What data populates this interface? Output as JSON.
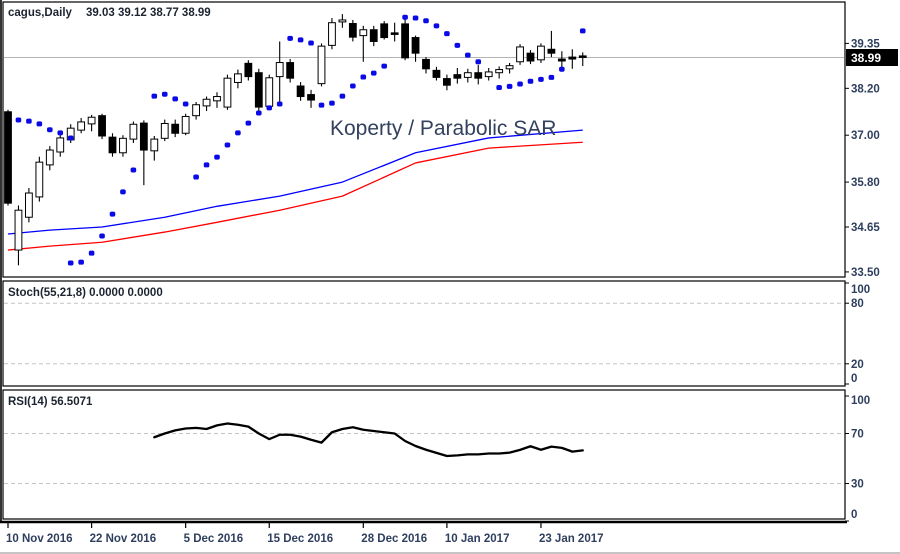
{
  "main": {
    "symbol_period": "cagus,Daily",
    "quote_ohlc": "39.03 39.12 38.77 38.99",
    "overlay_label": "Koperty / Parabolic SAR",
    "last_price_label": "38.99"
  },
  "stoch": {
    "label": "Stoch(55,21,8) 0.0000 0.0000"
  },
  "rsi": {
    "label": "RSI(14) 56.5071"
  },
  "colors": {
    "sar_dot": "#0a0ae6",
    "envelope_upper": "#0000ff",
    "envelope_lower": "#ff0000",
    "rsi_line": "#000000",
    "bull_body": "#ffffff",
    "bear_body": "#000000",
    "candle_outline": "#000000",
    "grid_dashed": "#c4c4c4",
    "current_price_line": "#b4b4b4",
    "axis_text": "#2e3f5e",
    "label_text": "#1c2430",
    "overlay_text": "#33415e",
    "badge_bg": "#000000",
    "badge_text": "#ffffff",
    "border": "#000000"
  },
  "chart_data": {
    "type": "candlestick",
    "symbol": "cagus",
    "timeframe": "Daily",
    "quote": {
      "open": 39.03,
      "high": 39.12,
      "low": 38.77,
      "close": 38.99
    },
    "x_ticks": [
      {
        "label": "10 Nov 2016",
        "index": 0
      },
      {
        "label": "22 Nov 2016",
        "index": 8
      },
      {
        "label": "5 Dec 2016",
        "index": 17
      },
      {
        "label": "15 Dec 2016",
        "index": 25
      },
      {
        "label": "28 Dec 2016",
        "index": 34
      },
      {
        "label": "10 Jan 2017",
        "index": 42
      },
      {
        "label": "23 Jan 2017",
        "index": 51
      }
    ],
    "panels": [
      {
        "id": "price",
        "ylim": [
          33.37,
          40.41
        ],
        "yticks": [
          39.35,
          38.2,
          37.0,
          35.8,
          34.65,
          33.5
        ],
        "last_price": 38.99,
        "ohlc": [
          [
            37.6,
            37.65,
            35.2,
            35.26
          ],
          [
            34.06,
            35.2,
            33.67,
            35.08
          ],
          [
            34.9,
            35.65,
            34.77,
            35.52
          ],
          [
            35.42,
            36.45,
            35.3,
            36.31
          ],
          [
            36.24,
            36.72,
            36.1,
            36.62
          ],
          [
            36.57,
            37.0,
            36.45,
            36.93
          ],
          [
            36.88,
            37.28,
            36.8,
            37.18
          ],
          [
            37.13,
            37.44,
            37.05,
            37.34
          ],
          [
            37.29,
            37.52,
            37.1,
            37.46
          ],
          [
            37.5,
            37.55,
            36.9,
            36.98
          ],
          [
            36.95,
            37.05,
            36.45,
            36.55
          ],
          [
            36.55,
            37.0,
            36.45,
            36.92
          ],
          [
            36.9,
            37.35,
            36.8,
            37.28
          ],
          [
            37.31,
            37.38,
            35.72,
            36.62
          ],
          [
            36.6,
            36.98,
            36.35,
            36.9
          ],
          [
            36.92,
            37.4,
            36.85,
            37.3
          ],
          [
            37.28,
            37.4,
            36.95,
            37.05
          ],
          [
            37.05,
            37.55,
            37.0,
            37.48
          ],
          [
            37.5,
            37.85,
            37.4,
            37.78
          ],
          [
            37.75,
            37.99,
            37.62,
            37.92
          ],
          [
            37.88,
            38.1,
            37.7,
            37.99
          ],
          [
            37.72,
            38.55,
            37.65,
            38.46
          ],
          [
            38.35,
            38.68,
            38.2,
            38.57
          ],
          [
            38.84,
            38.92,
            38.4,
            38.5
          ],
          [
            38.6,
            38.7,
            37.6,
            37.72
          ],
          [
            37.74,
            38.55,
            37.65,
            38.47
          ],
          [
            38.5,
            39.4,
            37.85,
            38.86
          ],
          [
            38.86,
            38.95,
            38.35,
            38.46
          ],
          [
            38.26,
            38.36,
            37.88,
            37.99
          ],
          [
            38.04,
            38.16,
            37.7,
            37.9
          ],
          [
            38.32,
            39.35,
            38.25,
            39.28
          ],
          [
            39.3,
            40.0,
            39.2,
            39.88
          ],
          [
            39.9,
            40.1,
            39.75,
            39.95
          ],
          [
            39.86,
            39.95,
            39.4,
            39.51
          ],
          [
            39.55,
            39.8,
            38.88,
            39.7
          ],
          [
            39.7,
            39.8,
            39.28,
            39.4
          ],
          [
            39.85,
            39.92,
            39.45,
            39.5
          ],
          [
            39.62,
            39.88,
            39.4,
            39.58
          ],
          [
            39.85,
            39.97,
            38.92,
            38.98
          ],
          [
            39.5,
            39.55,
            38.88,
            39.1
          ],
          [
            38.94,
            39.0,
            38.58,
            38.7
          ],
          [
            38.66,
            38.75,
            38.4,
            38.48
          ],
          [
            38.45,
            38.55,
            38.15,
            38.28
          ],
          [
            38.55,
            38.72,
            38.32,
            38.46
          ],
          [
            38.48,
            38.7,
            38.35,
            38.6
          ],
          [
            38.6,
            38.8,
            38.3,
            38.46
          ],
          [
            38.5,
            38.72,
            38.4,
            38.62
          ],
          [
            38.6,
            38.76,
            38.45,
            38.68
          ],
          [
            38.7,
            38.85,
            38.58,
            38.78
          ],
          [
            38.88,
            39.33,
            38.8,
            39.26
          ],
          [
            39.1,
            39.18,
            38.82,
            38.9
          ],
          [
            38.93,
            39.35,
            38.85,
            39.28
          ],
          [
            39.2,
            39.67,
            39.0,
            39.1
          ],
          [
            38.95,
            39.15,
            38.65,
            38.9
          ],
          [
            39.0,
            39.2,
            38.7,
            38.95
          ],
          [
            39.03,
            39.12,
            38.77,
            38.99
          ]
        ],
        "parabolic_sar": [
          [
            1,
            37.39
          ],
          [
            2,
            37.36
          ],
          [
            3,
            37.29
          ],
          [
            4,
            37.14
          ],
          [
            5,
            37.06
          ],
          [
            6,
            36.93
          ],
          [
            6,
            33.73
          ],
          [
            7,
            33.75
          ],
          [
            8,
            33.98
          ],
          [
            9,
            34.42
          ],
          [
            10,
            34.98
          ],
          [
            11,
            35.55
          ],
          [
            12,
            36.11
          ],
          [
            14,
            38.0
          ],
          [
            15,
            38.05
          ],
          [
            16,
            37.93
          ],
          [
            17,
            37.8
          ],
          [
            18,
            35.93
          ],
          [
            19,
            36.24
          ],
          [
            20,
            36.44
          ],
          [
            21,
            36.75
          ],
          [
            22,
            37.06
          ],
          [
            23,
            37.31
          ],
          [
            24,
            37.57
          ],
          [
            25,
            37.7
          ],
          [
            26,
            37.8
          ],
          [
            27,
            39.48
          ],
          [
            28,
            39.44
          ],
          [
            29,
            39.36
          ],
          [
            30,
            37.77
          ],
          [
            31,
            37.82
          ],
          [
            32,
            38.0
          ],
          [
            33,
            38.26
          ],
          [
            34,
            38.49
          ],
          [
            35,
            38.59
          ],
          [
            36,
            38.77
          ],
          [
            38,
            40.02
          ],
          [
            39,
            40.0
          ],
          [
            40,
            39.93
          ],
          [
            41,
            39.8
          ],
          [
            42,
            39.6
          ],
          [
            43,
            39.3
          ],
          [
            44,
            39.05
          ],
          [
            45,
            38.88
          ],
          [
            47,
            38.22
          ],
          [
            48,
            38.25
          ],
          [
            49,
            38.31
          ],
          [
            50,
            38.38
          ],
          [
            51,
            38.43
          ],
          [
            52,
            38.48
          ],
          [
            53,
            38.69
          ],
          [
            55,
            39.67
          ]
        ],
        "envelope_upper": [
          [
            0,
            34.47
          ],
          [
            4,
            34.57
          ],
          [
            9,
            34.65
          ],
          [
            15,
            34.9
          ],
          [
            20,
            35.18
          ],
          [
            26,
            35.44
          ],
          [
            32,
            35.8
          ],
          [
            39,
            36.55
          ],
          [
            46,
            36.93
          ],
          [
            55,
            37.13
          ]
        ],
        "envelope_lower": [
          [
            0,
            34.06
          ],
          [
            4,
            34.16
          ],
          [
            9,
            34.26
          ],
          [
            15,
            34.52
          ],
          [
            20,
            34.77
          ],
          [
            26,
            35.08
          ],
          [
            32,
            35.44
          ],
          [
            39,
            36.29
          ],
          [
            46,
            36.67
          ],
          [
            55,
            36.82
          ]
        ]
      },
      {
        "id": "stoch",
        "ylim": [
          0,
          100
        ],
        "yticks": [
          100,
          80,
          20,
          0
        ],
        "levels": [
          80,
          20
        ],
        "values": [
          0.0,
          0.0
        ]
      },
      {
        "id": "rsi",
        "ylim": [
          0,
          100
        ],
        "yticks": [
          100,
          70,
          30,
          0
        ],
        "levels": [
          70,
          30
        ],
        "current": 56.5071,
        "start_index": 14,
        "values": [
          67,
          70,
          72.5,
          74,
          74.5,
          73.6,
          76.5,
          78,
          77,
          75.5,
          70,
          65.5,
          69,
          69,
          67.5,
          65,
          62.7,
          71,
          73.6,
          75,
          73,
          72,
          71,
          70,
          64,
          60,
          57,
          54.5,
          52,
          52.5,
          53.3,
          53.3,
          54,
          54,
          54.7,
          56.9,
          59.8,
          57,
          59.5,
          58.5,
          55.5,
          56.5
        ]
      }
    ]
  }
}
